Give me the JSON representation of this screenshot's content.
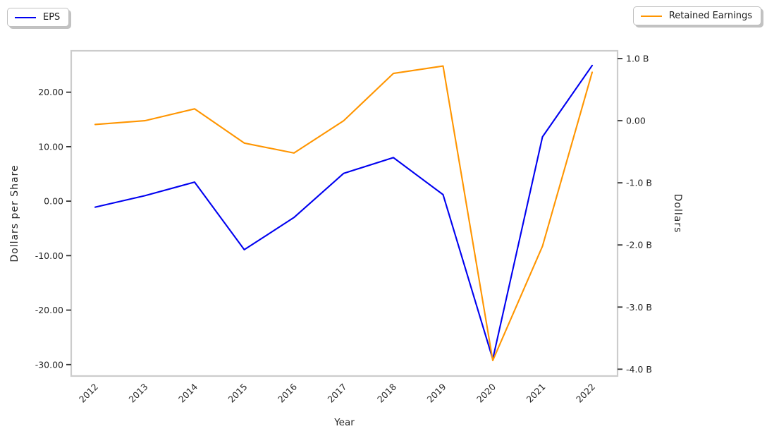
{
  "legend": {
    "eps_label": "EPS",
    "retained_label": "Retained Earnings"
  },
  "colors": {
    "eps_line": "#0000f0",
    "retained_line": "#ff9500",
    "spine": "#cccccc",
    "tick": "#333333",
    "text": "#262626"
  },
  "chart_data": {
    "type": "line",
    "title": "",
    "x_axis": {
      "label": "Year",
      "tick_labels": [
        "2012",
        "2013",
        "2014",
        "2015",
        "2016",
        "2017",
        "2018",
        "2019",
        "2020",
        "2021",
        "2022"
      ]
    },
    "left_axis": {
      "label": "Dollars per Share",
      "ticks": [
        20,
        10,
        0,
        -10,
        -20,
        -30
      ],
      "tick_labels": [
        "20.00",
        "10.00",
        "0.00",
        "-10.00",
        "-20.00",
        "-30.00"
      ],
      "ylim": [
        -32.1,
        27.6
      ]
    },
    "right_axis": {
      "label": "Dollars",
      "ticks": [
        1.0,
        0,
        -1.0,
        -2.0,
        -3.0,
        -4.0
      ],
      "tick_labels": [
        "1.0 B",
        "0.00",
        "-1.0 B",
        "-2.0 B",
        "-3.0 B",
        "-4.0 B"
      ],
      "ylim": [
        -4.11,
        1.125
      ]
    },
    "x": [
      2012,
      2013,
      2014,
      2015,
      2016,
      2017,
      2018,
      2019,
      2020,
      2021,
      2022
    ],
    "series": [
      {
        "name": "EPS",
        "axis": "left",
        "unit": "dollars per share",
        "values": [
          -1.1,
          1.0,
          3.5,
          -8.9,
          -3.0,
          5.1,
          8.0,
          1.2,
          -29.0,
          11.8,
          24.9
        ]
      },
      {
        "name": "Retained Earnings",
        "axis": "right",
        "unit": "billions of dollars",
        "values": [
          -0.06,
          0.0,
          0.19,
          -0.36,
          -0.52,
          0.0,
          0.76,
          0.88,
          -3.86,
          -2.02,
          0.78
        ]
      }
    ],
    "grid": false,
    "legend_position": "two boxes: upper-left and upper-right of figure"
  }
}
